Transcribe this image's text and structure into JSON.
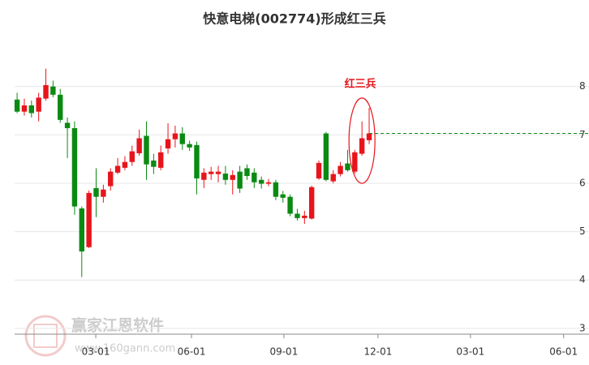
{
  "chart_data": {
    "type": "candlestick",
    "title": "快意电梯(002774)形成红三兵",
    "annotation": "红三兵",
    "watermark": "赢家江恩软件",
    "watermark_url": "www.160gann.com",
    "up_color": "#e8141b",
    "down_color": "#0b8a12",
    "categories": [
      null,
      null,
      null,
      null,
      null,
      null,
      null,
      null,
      null,
      null,
      null,
      null,
      null,
      null,
      null,
      null,
      null,
      null,
      null,
      null,
      null,
      null,
      null,
      null,
      null,
      null,
      null,
      null,
      null,
      null,
      null,
      null,
      null,
      null,
      null,
      null,
      null,
      null,
      null,
      null,
      null,
      null,
      null,
      null,
      null,
      null,
      null,
      null,
      null,
      null
    ],
    "open": [
      7.73,
      7.48,
      7.61,
      7.48,
      7.75,
      8.0,
      7.83,
      7.25,
      7.14,
      5.48,
      4.68,
      5.9,
      5.72,
      5.94,
      6.22,
      6.32,
      6.44,
      6.62,
      6.98,
      6.47,
      6.32,
      6.72,
      6.91,
      7.03,
      6.81,
      6.79,
      6.07,
      6.19,
      6.19,
      6.2,
      6.07,
      6.24,
      6.31,
      6.22,
      6.07,
      5.99,
      6.02,
      5.77,
      5.72,
      5.37,
      5.28,
      5.27,
      6.1,
      7.03,
      6.04,
      6.19,
      6.41,
      6.24,
      6.61,
      6.89
    ],
    "high": [
      7.87,
      7.75,
      7.71,
      7.87,
      8.37,
      8.12,
      7.95,
      7.36,
      7.28,
      5.52,
      5.85,
      6.31,
      5.97,
      6.31,
      6.52,
      6.56,
      6.78,
      7.11,
      7.28,
      6.61,
      6.78,
      7.24,
      7.19,
      7.16,
      6.88,
      6.86,
      6.31,
      6.34,
      6.36,
      6.36,
      6.27,
      6.36,
      6.39,
      6.31,
      6.14,
      6.09,
      6.07,
      5.84,
      5.77,
      5.47,
      5.43,
      5.95,
      6.47,
      7.06,
      6.27,
      6.44,
      6.69,
      6.69,
      7.28,
      7.56
    ],
    "low": [
      7.45,
      7.4,
      7.36,
      7.28,
      7.71,
      7.78,
      7.25,
      6.52,
      5.35,
      4.06,
      4.66,
      5.3,
      5.6,
      5.85,
      6.19,
      6.27,
      6.36,
      6.57,
      6.07,
      6.19,
      6.27,
      6.61,
      6.74,
      6.69,
      6.67,
      5.77,
      5.9,
      6.07,
      6.02,
      5.97,
      5.77,
      5.8,
      6.07,
      5.9,
      5.89,
      5.94,
      5.65,
      5.6,
      5.32,
      5.23,
      5.16,
      5.25,
      6.07,
      6.04,
      6.0,
      6.14,
      6.24,
      6.2,
      6.57,
      6.81
    ],
    "close": [
      7.48,
      7.61,
      7.45,
      7.77,
      8.03,
      7.83,
      7.31,
      7.14,
      5.52,
      4.59,
      5.8,
      5.72,
      5.87,
      6.24,
      6.36,
      6.44,
      6.66,
      6.93,
      6.39,
      6.34,
      6.64,
      6.91,
      7.03,
      6.81,
      6.74,
      6.1,
      6.22,
      6.24,
      6.24,
      6.07,
      6.17,
      5.89,
      6.15,
      6.02,
      5.99,
      6.02,
      5.72,
      5.7,
      5.37,
      5.28,
      5.33,
      5.92,
      6.42,
      6.07,
      6.19,
      6.36,
      6.27,
      6.64,
      6.93,
      7.03
    ],
    "ylim": [
      2.88,
      8.9
    ],
    "yticks": [
      3,
      4,
      5,
      6,
      7,
      8
    ],
    "xlim": [
      -0.35,
      79.6
    ],
    "xticks": [
      {
        "value": 10.95,
        "label": "03-01"
      },
      {
        "value": 24.27,
        "label": "06-01"
      },
      {
        "value": 37.13,
        "label": "09-01"
      },
      {
        "value": 50.23,
        "label": "12-01"
      },
      {
        "value": 63.1,
        "label": "03-01"
      },
      {
        "value": 76.07,
        "label": "06-01"
      }
    ],
    "grid": true
  }
}
